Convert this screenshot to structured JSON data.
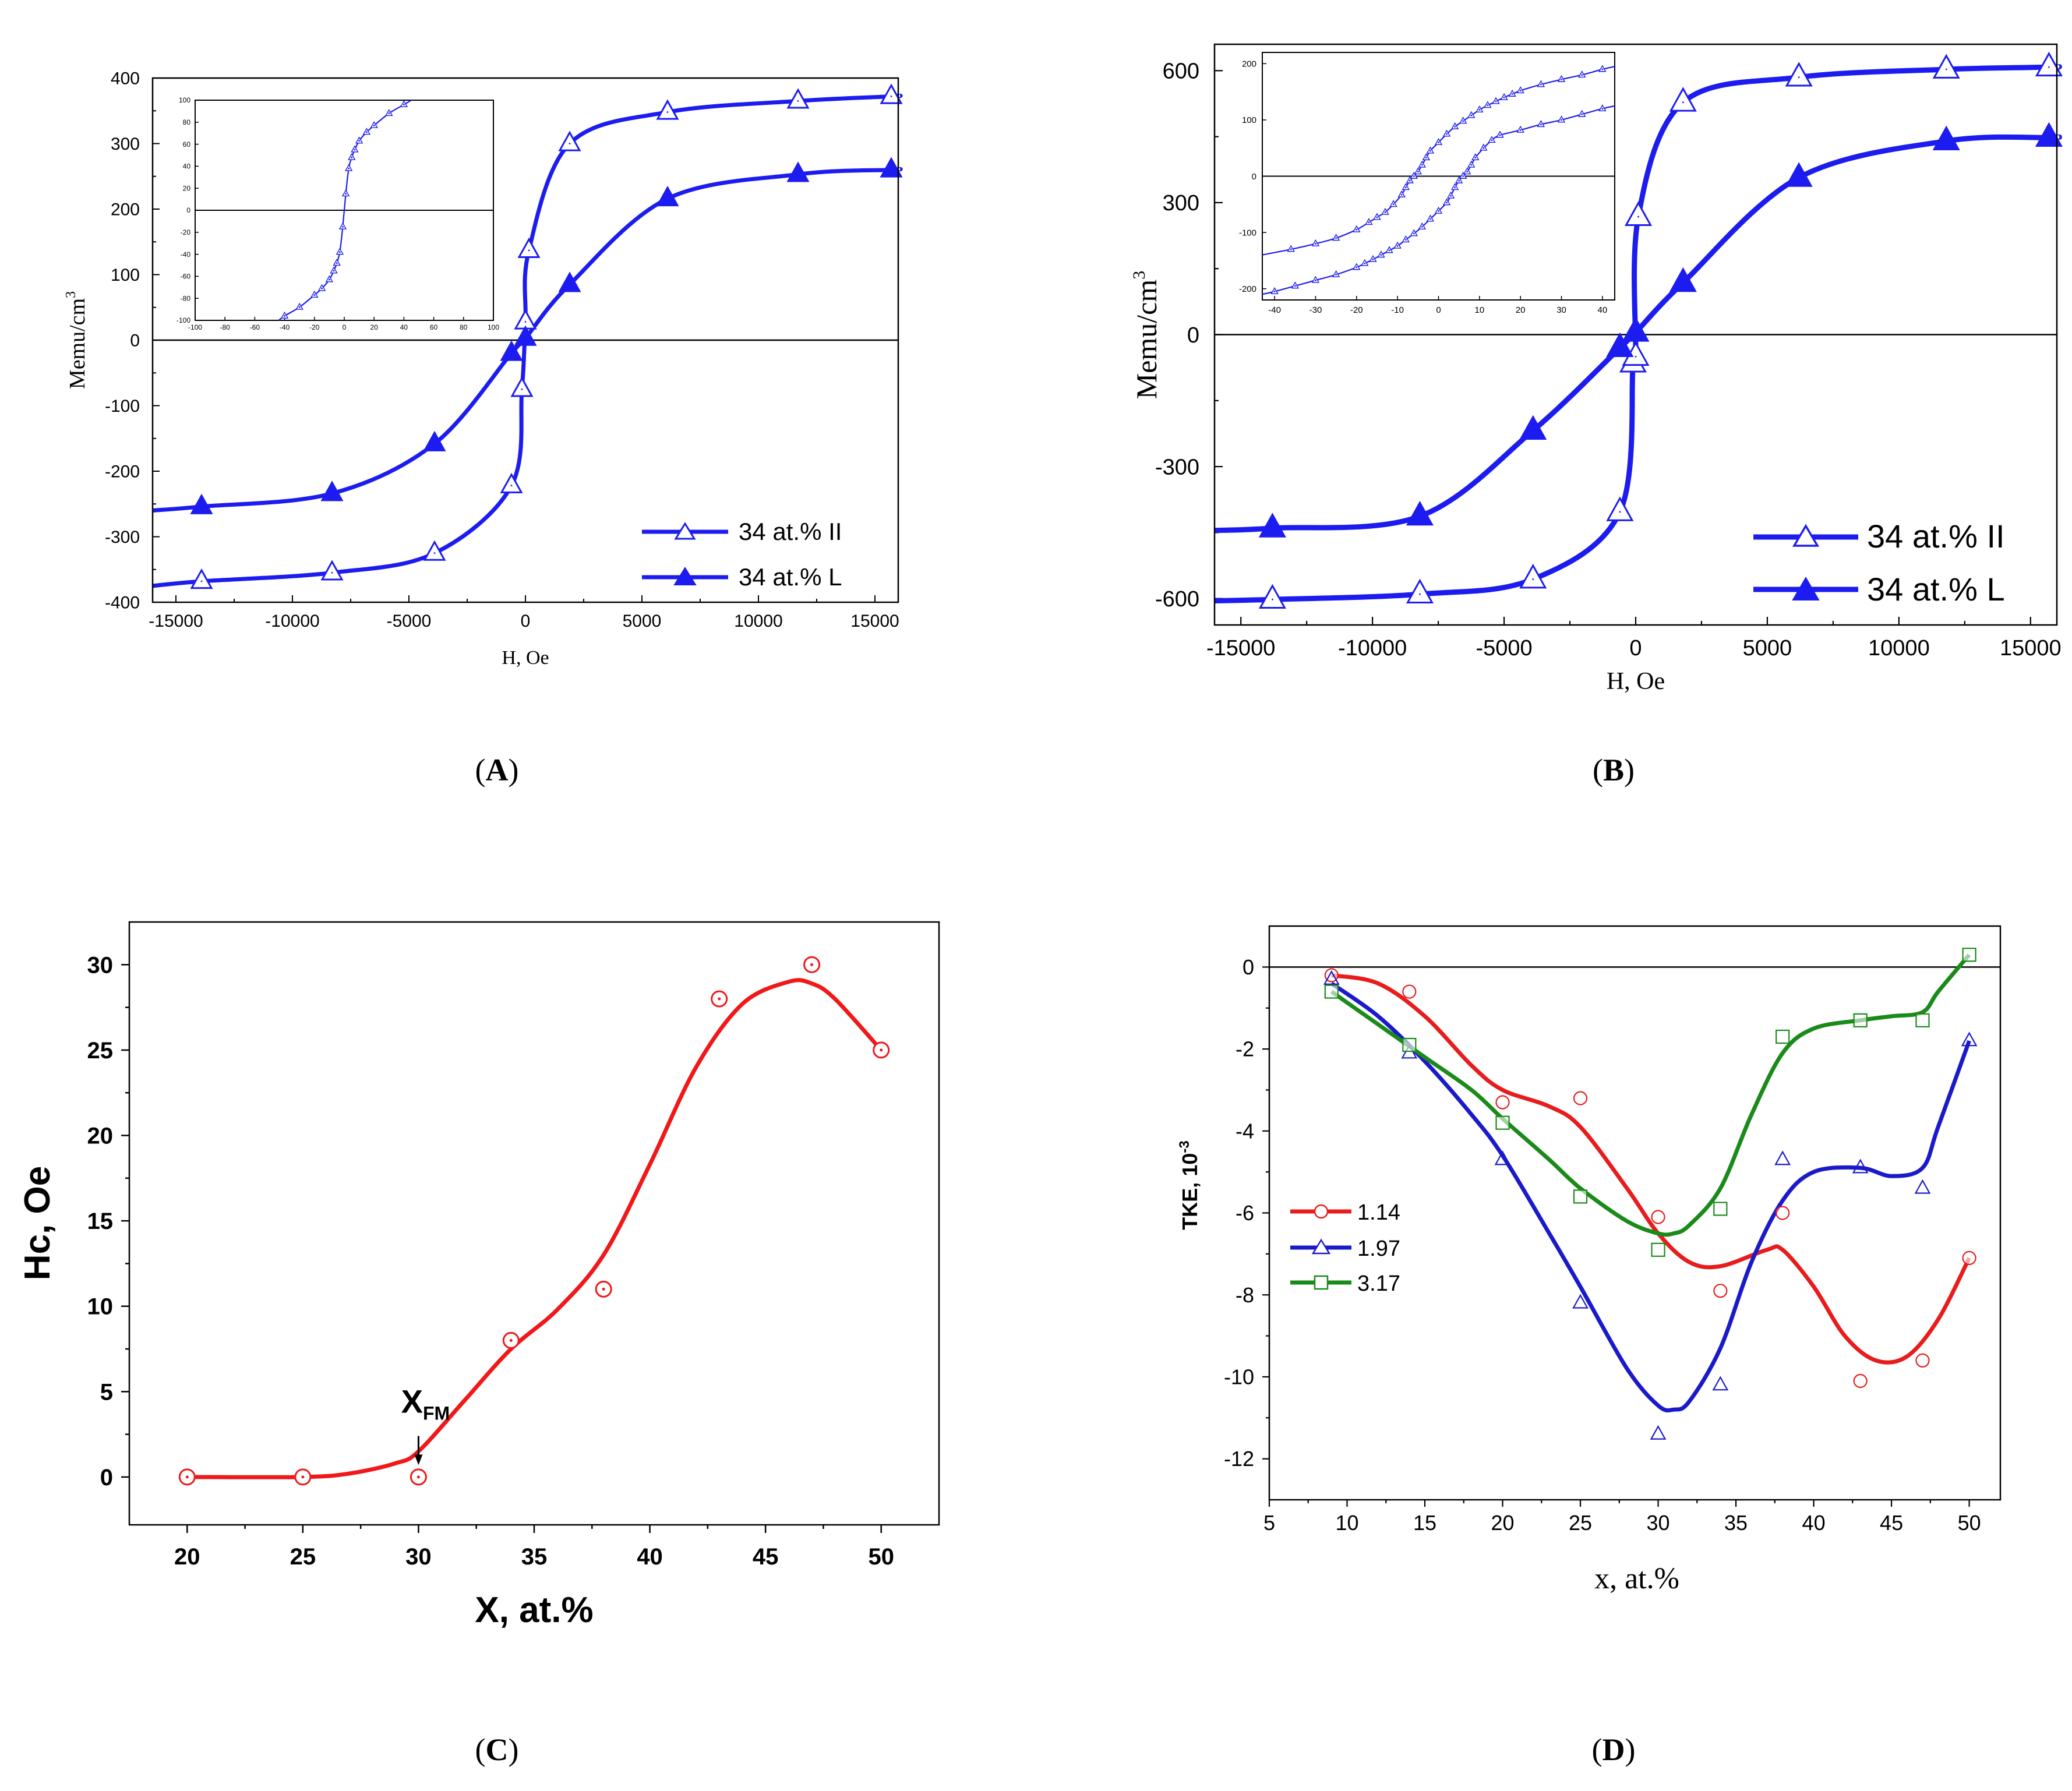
{
  "chart_data": [
    {
      "id": "A",
      "type": "line",
      "caption_letter": "A",
      "xlabel": "H, Oe",
      "ylabel_base": "Memu/cm",
      "ylabel_sup": "3",
      "xlim": [
        -16000,
        16000
      ],
      "ylim": [
        -400,
        400
      ],
      "xticks": [
        -15000,
        -10000,
        -5000,
        0,
        5000,
        10000,
        15000
      ],
      "yticks": [
        -400,
        -300,
        -200,
        -100,
        0,
        100,
        200,
        300,
        400
      ],
      "series": [
        {
          "name": "34 at.% II",
          "marker": "triangle-open",
          "color": "#1c1cf0",
          "x": [
            -16000,
            -13900,
            -8300,
            -3900,
            -600,
            -150,
            0,
            150,
            1900,
            6100,
            11700,
            15700,
            16000
          ],
          "y": [
            -375,
            -368,
            -355,
            -325,
            -222,
            -75,
            28,
            137,
            300,
            348,
            365,
            372,
            373
          ],
          "markers_x": [
            -13900,
            -8300,
            -3900,
            -600,
            -150,
            0,
            150,
            1900,
            6100,
            11700,
            15700
          ]
        },
        {
          "name": "34 at.% L",
          "marker": "triangle-filled",
          "color": "#1c1cf0",
          "x": [
            -16000,
            -13900,
            -8300,
            -3900,
            -600,
            0,
            1900,
            6100,
            11700,
            15700,
            16000
          ],
          "y": [
            -260,
            -254,
            -234,
            -158,
            -20,
            3,
            85,
            216,
            253,
            260,
            261
          ],
          "markers_x": [
            -13900,
            -8300,
            -3900,
            -600,
            0,
            1900,
            6100,
            11700,
            15700
          ]
        }
      ],
      "legend_position": "bottom-right",
      "inset": {
        "xlim": [
          -100,
          100
        ],
        "ylim": [
          -100,
          100
        ],
        "xticks": [
          -100,
          -80,
          -60,
          -40,
          -20,
          0,
          20,
          40,
          60,
          80,
          100
        ],
        "yticks": [
          -100,
          -80,
          -60,
          -40,
          -20,
          0,
          20,
          40,
          60,
          80,
          100
        ],
        "series": [
          {
            "name": "loop",
            "marker": "triangle-open",
            "color": "#1c1cf0",
            "x": [
              -44,
              -40,
              -30,
              -20,
              -15,
              -10,
              -7,
              -5,
              -3,
              -1,
              1,
              3,
              5,
              7,
              10,
              15,
              20,
              30,
              40,
              45
            ],
            "y": [
              -100,
              -96,
              -88,
              -77,
              -71,
              -63,
              -55,
              -48,
              -38,
              -15,
              15,
              38,
              48,
              55,
              63,
              71,
              77,
              88,
              96,
              100
            ]
          }
        ]
      }
    },
    {
      "id": "B",
      "type": "line",
      "caption_letter": "B",
      "xlabel": "H, Oe",
      "ylabel_base": "Memu/cm",
      "ylabel_sup": "3",
      "xlim": [
        -16000,
        16000
      ],
      "ylim": [
        -660,
        660
      ],
      "xticks": [
        -15000,
        -10000,
        -5000,
        0,
        5000,
        10000,
        15000
      ],
      "yticks": [
        -600,
        -300,
        0,
        300,
        600
      ],
      "series": [
        {
          "name": "34 at.% II",
          "marker": "triangle-open",
          "color": "#1c1cf0",
          "x": [
            -16000,
            -13800,
            -8200,
            -3900,
            -600,
            -100,
            0,
            100,
            1800,
            6200,
            11800,
            15700,
            16000
          ],
          "y": [
            -605,
            -602,
            -590,
            -556,
            -403,
            -65,
            -50,
            268,
            528,
            585,
            603,
            608,
            609
          ],
          "markers_x": [
            -13800,
            -8200,
            -3900,
            -600,
            -100,
            0,
            100,
            1800,
            6200,
            11800,
            15700
          ]
        },
        {
          "name": "34 at.% L",
          "marker": "triangle-filled",
          "color": "#1c1cf0",
          "x": [
            -16000,
            -13800,
            -8200,
            -3900,
            -600,
            0,
            1800,
            6200,
            11800,
            15700,
            16000
          ],
          "y": [
            -445,
            -440,
            -413,
            -218,
            -30,
            5,
            118,
            357,
            440,
            448,
            449
          ],
          "markers_x": [
            -13800,
            -8200,
            -3900,
            -600,
            0,
            1800,
            6200,
            11800,
            15700
          ]
        }
      ],
      "legend_position": "bottom-right",
      "inset": {
        "xlim": [
          -43,
          43
        ],
        "ylim": [
          -220,
          220
        ],
        "xticks": [
          -40,
          -30,
          -20,
          -10,
          0,
          10,
          20,
          30,
          40
        ],
        "yticks": [
          -200,
          -100,
          0,
          100,
          200
        ],
        "series": [
          {
            "name": "upper-branch",
            "marker": "triangle-open",
            "color": "#1c1cf0",
            "x": [
              -43,
              -36,
              -30,
              -25,
              -20,
              -17,
              -15,
              -13,
              -11,
              -9,
              -8,
              -7,
              -6,
              -5,
              -4,
              -3,
              -2,
              0,
              2,
              4,
              6,
              8,
              10,
              12,
              14,
              16,
              18,
              20,
              25,
              30,
              35,
              40,
              43
            ],
            "y": [
              -140,
              -130,
              -120,
              -110,
              -95,
              -82,
              -73,
              -64,
              -50,
              -33,
              -20,
              -8,
              0,
              8,
              20,
              33,
              45,
              60,
              75,
              88,
              98,
              108,
              118,
              126,
              133,
              140,
              146,
              152,
              163,
              172,
              180,
              190,
              195
            ]
          },
          {
            "name": "lower-branch",
            "marker": "triangle-open",
            "color": "#1c1cf0",
            "x": [
              -43,
              -40,
              -35,
              -30,
              -25,
              -20,
              -18,
              -16,
              -14,
              -12,
              -10,
              -8,
              -6,
              -4,
              -2,
              0,
              2,
              3,
              4,
              5,
              6,
              7,
              8,
              9,
              11,
              13,
              15,
              20,
              25,
              30,
              35,
              40,
              43
            ],
            "y": [
              -210,
              -205,
              -195,
              -185,
              -175,
              -162,
              -155,
              -148,
              -140,
              -132,
              -124,
              -113,
              -102,
              -90,
              -76,
              -62,
              -47,
              -35,
              -20,
              -8,
              0,
              8,
              20,
              33,
              50,
              64,
              73,
              82,
              92,
              100,
              110,
              120,
              125
            ]
          }
        ]
      }
    },
    {
      "id": "C",
      "type": "line",
      "caption_letter": "C",
      "xlabel": "X, at.%",
      "ylabel": "Hc, Oe",
      "annotation": {
        "text_base": "X",
        "text_sub": "FM",
        "x": 30,
        "y_from": 2.4,
        "y_to": 0.7
      },
      "xlim": [
        17.5,
        52.5
      ],
      "ylim": [
        -2.8,
        32.5
      ],
      "xticks": [
        20,
        25,
        30,
        35,
        40,
        45,
        50
      ],
      "yticks": [
        0,
        5,
        10,
        15,
        20,
        25,
        30
      ],
      "series": [
        {
          "name": "Hc",
          "marker": "circle-dot",
          "color": "#f01818",
          "points_x": [
            20,
            25,
            30,
            34,
            38,
            43,
            47,
            50
          ],
          "points_y": [
            0,
            0,
            0,
            8,
            11,
            28,
            30,
            25
          ],
          "curve_x": [
            20,
            25,
            27,
            29,
            30,
            32,
            34,
            36,
            38,
            40,
            42,
            44,
            46,
            47,
            48,
            50
          ],
          "curve_y": [
            0,
            0,
            0.2,
            0.8,
            1.5,
            4.5,
            7.5,
            9.8,
            13.0,
            18.3,
            24.0,
            27.7,
            29.0,
            28.9,
            28.0,
            25.0
          ]
        }
      ]
    },
    {
      "id": "D",
      "type": "line",
      "caption_letter": "D",
      "xlabel": "x, at.%",
      "ylabel_base": "TKE, 10",
      "ylabel_sup": "-3",
      "xlim": [
        5,
        52
      ],
      "ylim": [
        -13,
        1
      ],
      "xticks": [
        5,
        10,
        15,
        20,
        25,
        30,
        35,
        40,
        45,
        50
      ],
      "yticks": [
        0,
        -2,
        -4,
        -6,
        -8,
        -10,
        -12
      ],
      "legend_position": "center-left",
      "series": [
        {
          "name": "1.14",
          "marker": "circle-open",
          "color": "#e81c1c",
          "points_x": [
            9,
            14,
            20,
            25,
            30,
            34,
            38,
            43,
            47,
            50
          ],
          "points_y": [
            -0.2,
            -0.6,
            -3.3,
            -3.2,
            -6.1,
            -7.9,
            -6.0,
            -10.1,
            -9.6,
            -7.1
          ],
          "curve_x": [
            9,
            12,
            15,
            18,
            20,
            23,
            25,
            28,
            30,
            32,
            34,
            37,
            38,
            40,
            42,
            44,
            46,
            48,
            50
          ],
          "curve_y": [
            -0.2,
            -0.4,
            -1.2,
            -2.4,
            -3.0,
            -3.4,
            -3.9,
            -5.4,
            -6.5,
            -7.2,
            -7.3,
            -6.9,
            -6.9,
            -7.8,
            -9.0,
            -9.6,
            -9.5,
            -8.6,
            -7.1
          ]
        },
        {
          "name": "1.97",
          "marker": "triangle-open",
          "color": "#1a1acb",
          "points_x": [
            9,
            14,
            20,
            25,
            30,
            34,
            38,
            43,
            47,
            50
          ],
          "points_y": [
            -0.3,
            -2.1,
            -4.7,
            -8.2,
            -11.4,
            -10.2,
            -4.7,
            -4.9,
            -5.4,
            -1.8
          ],
          "curve_x": [
            9,
            12,
            15,
            18,
            20,
            23,
            25,
            28,
            30,
            31,
            32,
            34,
            36,
            38,
            40,
            43,
            45,
            47,
            48,
            50
          ],
          "curve_y": [
            -0.4,
            -1.2,
            -2.3,
            -3.6,
            -4.6,
            -6.5,
            -7.8,
            -9.8,
            -10.7,
            -10.8,
            -10.6,
            -9.3,
            -7.2,
            -5.7,
            -5.0,
            -4.9,
            -5.1,
            -4.9,
            -3.9,
            -1.8
          ]
        },
        {
          "name": "3.17",
          "marker": "square-open",
          "color": "#1a8a1a",
          "points_x": [
            9,
            14,
            20,
            25,
            30,
            34,
            38,
            43,
            47,
            50
          ],
          "points_y": [
            -0.6,
            -1.9,
            -3.8,
            -5.6,
            -6.9,
            -5.9,
            -1.7,
            -1.3,
            -1.3,
            0.3
          ],
          "curve_x": [
            9,
            12,
            15,
            18,
            20,
            23,
            25,
            28,
            30,
            31,
            32,
            34,
            36,
            38,
            40,
            43,
            45,
            47,
            48,
            50
          ],
          "curve_y": [
            -0.6,
            -1.4,
            -2.2,
            -3.0,
            -3.7,
            -4.7,
            -5.4,
            -6.2,
            -6.5,
            -6.5,
            -6.3,
            -5.4,
            -3.6,
            -2.1,
            -1.5,
            -1.3,
            -1.2,
            -1.1,
            -0.6,
            0.3
          ]
        }
      ]
    }
  ]
}
